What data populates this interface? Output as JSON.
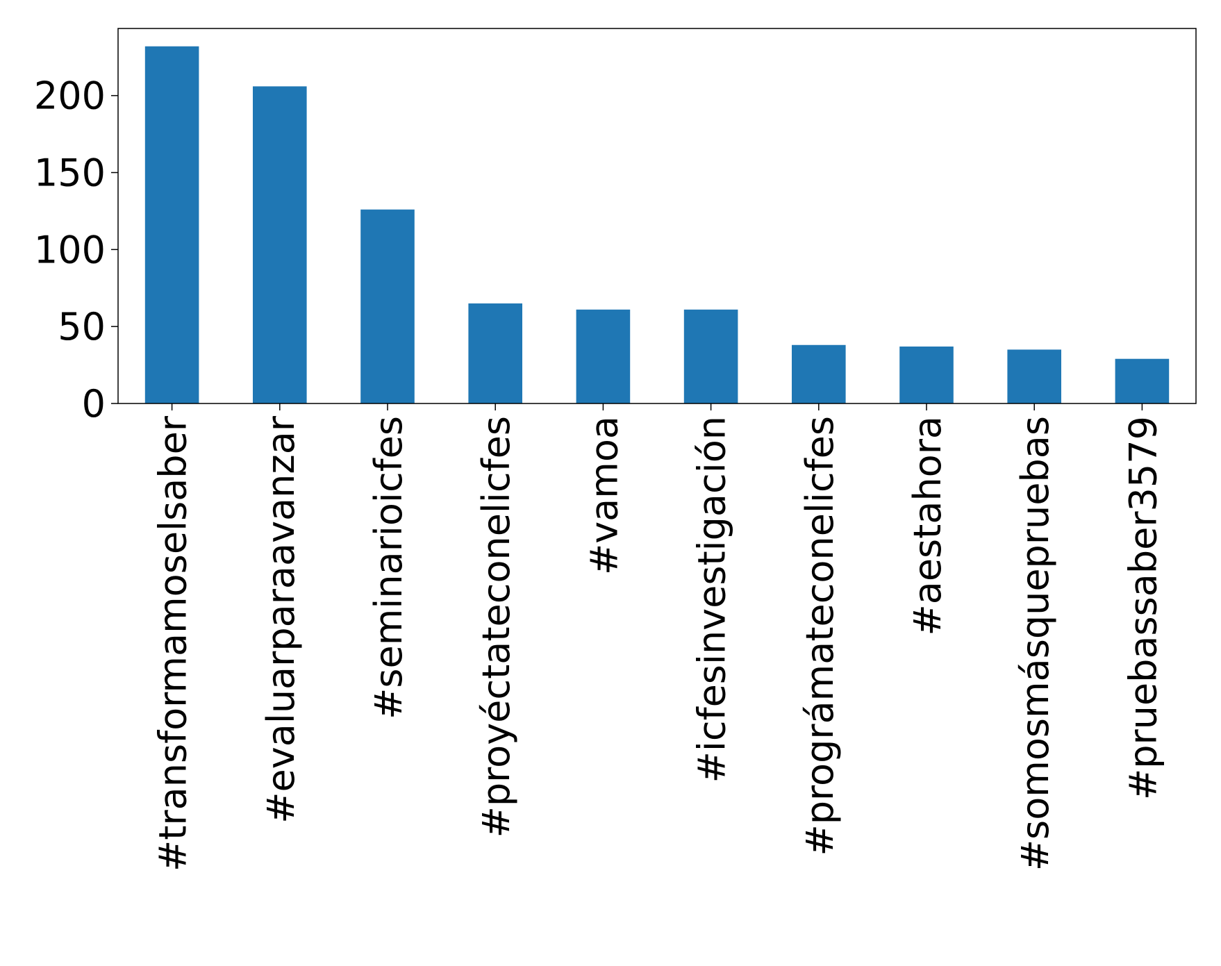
{
  "chart_data": {
    "type": "bar",
    "title": "",
    "xlabel": "",
    "ylabel": "",
    "categories": [
      "#transformamoselsaber",
      "#evaluarparaavanzar",
      "#seminarioicfes",
      "#proyéctateconelicfes",
      "#vamoa",
      "#icfesinvestigación",
      "#prográmateconelicfes",
      "#aestahora",
      "#somosmásquepruebas",
      "#pruebassaber3579"
    ],
    "values": [
      232,
      206,
      126,
      65,
      61,
      61,
      38,
      37,
      35,
      29
    ],
    "ylim": [
      0,
      243.6
    ],
    "yticks": [
      0,
      50,
      100,
      150,
      200
    ],
    "grid": false,
    "legend": "none",
    "bar_color": "#1f77b4",
    "axis_color": "#000000"
  }
}
